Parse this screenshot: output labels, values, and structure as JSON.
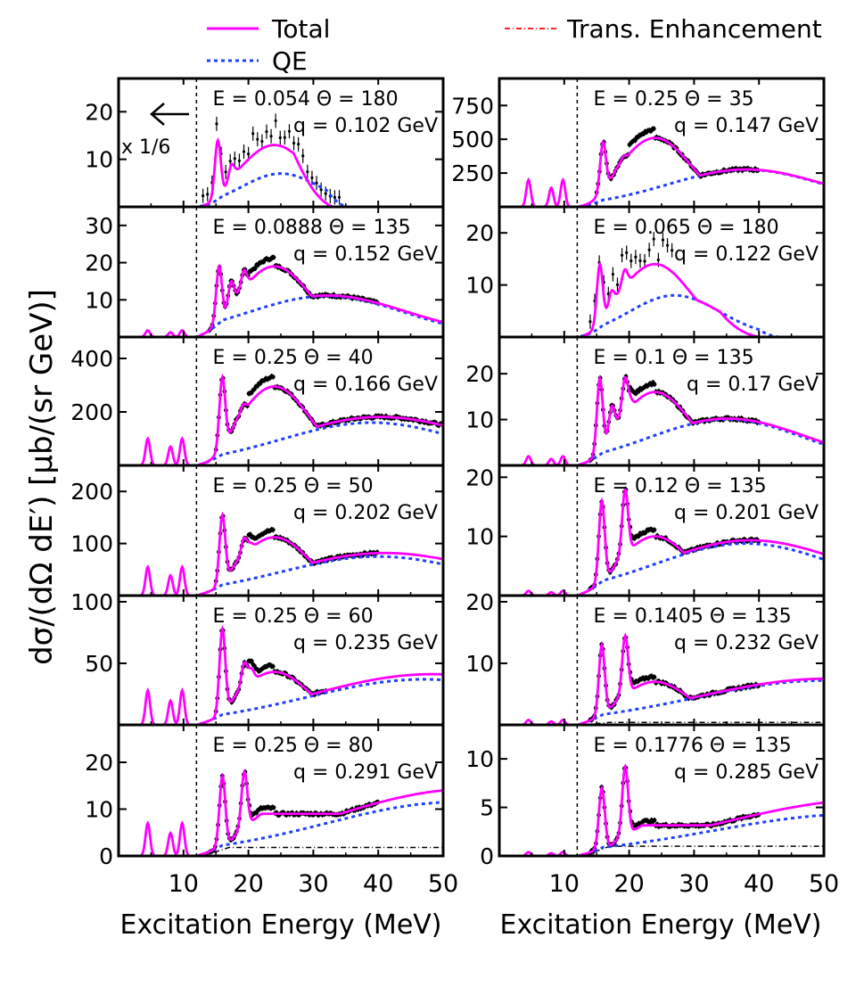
{
  "legend": {
    "total": "Total",
    "qe": "QE",
    "trans": "Trans. Enhancement"
  },
  "colors": {
    "total": "#ff00ff",
    "qe": "#1f3fff",
    "trans": "#ff2020",
    "data": "#000000"
  },
  "figure": {
    "ylabel": "dσ/(dΩ dE′) [μb/(sr GeV)]",
    "xlabel": "Excitation Energy (MeV)",
    "annotation_arrow": "x 1/6"
  },
  "chart_data": {
    "type": "line",
    "xlim": [
      0,
      50
    ],
    "x_ticks": [
      10,
      20,
      30,
      40,
      50
    ],
    "threshold_line_x": 12,
    "panels": [
      {
        "id": "L1",
        "col": 0,
        "row": 0,
        "label_E": "E = 0.054",
        "label_theta": "Θ = 180",
        "label_q": "q = 0.102 GeV",
        "ylim": [
          0,
          27
        ],
        "yticks": [
          10,
          20
        ],
        "peak": 13,
        "qe_peak": 7,
        "qe_center": 25,
        "qe_width": 6,
        "qe_end": 32,
        "curve_end": 33,
        "data_start": 13,
        "data_end": 34,
        "low_spikes": 0,
        "resonances": [
          [
            15.3,
            14
          ],
          [
            17.5,
            9
          ],
          [
            19.2,
            8
          ],
          [
            20.3,
            9
          ]
        ],
        "trans": 0
      },
      {
        "id": "L2",
        "col": 0,
        "row": 1,
        "label_E": "E = 0.0888",
        "label_theta": "Θ = 135",
        "label_q": "q = 0.152 GeV",
        "ylim": [
          0,
          35
        ],
        "yticks": [
          10,
          20,
          30
        ],
        "peak": 19,
        "qe_peak": 11,
        "qe_center": 32,
        "qe_width": 12,
        "tail": 4,
        "data_start": 14,
        "data_end": 40,
        "low_spikes": 1.8,
        "resonances": [
          [
            15.5,
            19
          ],
          [
            17.4,
            15
          ],
          [
            19.4,
            18
          ],
          [
            20.4,
            14
          ]
        ],
        "trans": 0
      },
      {
        "id": "L3",
        "col": 0,
        "row": 2,
        "label_E": "E = 0.25",
        "label_theta": "Θ = 40",
        "label_q": "q = 0.166 GeV",
        "ylim": [
          0,
          480
        ],
        "yticks": [
          200,
          400
        ],
        "peak": 295,
        "qe_peak": 160,
        "qe_center": 39,
        "qe_width": 14,
        "tail": 150,
        "data_start": 15,
        "data_end": 50,
        "low_spikes": 100,
        "resonances": [
          [
            16,
            330
          ],
          [
            19.4,
            230
          ],
          [
            20.6,
            200
          ]
        ],
        "trans": 0
      },
      {
        "id": "L4",
        "col": 0,
        "row": 3,
        "label_E": "E = 0.25",
        "label_theta": "Θ = 50",
        "label_q": "q = 0.202 GeV",
        "ylim": [
          0,
          250
        ],
        "yticks": [
          100,
          200
        ],
        "peak": 112,
        "qe_peak": 75,
        "qe_center": 40,
        "qe_width": 15,
        "tail": 70,
        "data_start": 15,
        "data_end": 40,
        "low_spikes": 55,
        "resonances": [
          [
            16,
            155
          ],
          [
            19.4,
            110
          ],
          [
            20.5,
            100
          ]
        ],
        "trans": 0
      },
      {
        "id": "L5",
        "col": 0,
        "row": 4,
        "label_E": "E = 0.25",
        "label_theta": "Θ = 60",
        "label_q": "q = 0.235 GeV",
        "ylim": [
          0,
          105
        ],
        "yticks": [
          50,
          100
        ],
        "peak": 43,
        "qe_peak": 37,
        "qe_center": 47,
        "qe_width": 18,
        "tail": 41,
        "data_start": 15,
        "data_end": 32,
        "low_spikes": 28,
        "resonances": [
          [
            16,
            78
          ],
          [
            19.4,
            50
          ],
          [
            20.5,
            45
          ]
        ],
        "trans": 0
      },
      {
        "id": "L6",
        "col": 0,
        "row": 5,
        "label_E": "E = 0.25",
        "label_theta": "Θ = 80",
        "label_q": "q = 0.291 GeV",
        "ylim": [
          0,
          28
        ],
        "yticks": [
          0,
          10,
          20
        ],
        "peak": 10,
        "qe_peak": 11.5,
        "qe_center": 52,
        "qe_width": 20,
        "tail": 14,
        "data_start": 14,
        "data_end": 40,
        "low_spikes": 7,
        "resonances": [
          [
            16,
            17
          ],
          [
            19.4,
            18
          ]
        ],
        "trans": 1.8,
        "rising": true
      },
      {
        "id": "R1",
        "col": 1,
        "row": 0,
        "label_E": "E = 0.25",
        "label_theta": "Θ = 35",
        "label_q": "q = 0.147 GeV",
        "ylim": [
          0,
          950
        ],
        "yticks": [
          250,
          500,
          750
        ],
        "peak": 510,
        "qe_peak": 275,
        "qe_center": 38,
        "qe_width": 12,
        "tail": 170,
        "data_start": 15,
        "data_end": 40,
        "low_spikes": 200,
        "resonances": [
          [
            16,
            480
          ],
          [
            19.4,
            380
          ],
          [
            20.6,
            330
          ]
        ],
        "trans": 0
      },
      {
        "id": "R2",
        "col": 1,
        "row": 1,
        "label_E": "E = 0.065",
        "label_theta": "Θ = 180",
        "label_q": "q = 0.122 GeV",
        "ylim": [
          0,
          25
        ],
        "yticks": [
          10,
          20
        ],
        "peak": 14,
        "qe_peak": 8,
        "qe_center": 27,
        "qe_width": 7,
        "qe_end": 40,
        "curve_end": 40,
        "data_start": 14,
        "data_end": 27,
        "low_spikes": 0,
        "resonances": [
          [
            15.5,
            14
          ],
          [
            17.4,
            9
          ],
          [
            19.4,
            13
          ],
          [
            20.4,
            10
          ]
        ],
        "trans": 0
      },
      {
        "id": "R3",
        "col": 1,
        "row": 2,
        "label_E": "E = 0.1",
        "label_theta": "Θ = 135",
        "label_q": "q = 0.17 GeV",
        "ylim": [
          0,
          28
        ],
        "yticks": [
          10,
          20
        ],
        "peak": 16,
        "qe_peak": 10,
        "qe_center": 35,
        "qe_width": 12,
        "tail": 5,
        "data_start": 14,
        "data_end": 40,
        "low_spikes": 2,
        "resonances": [
          [
            15.5,
            19
          ],
          [
            17.4,
            13
          ],
          [
            19.4,
            19
          ],
          [
            20.4,
            14
          ]
        ],
        "trans": 0
      },
      {
        "id": "R4",
        "col": 1,
        "row": 3,
        "label_E": "E = 0.12",
        "label_theta": "Θ = 135",
        "label_q": "q = 0.201 GeV",
        "ylim": [
          0,
          22
        ],
        "yticks": [
          10,
          20
        ],
        "peak": 10,
        "qe_peak": 8.8,
        "qe_center": 38,
        "qe_width": 14,
        "tail": 7,
        "data_start": 14,
        "data_end": 40,
        "low_spikes": 0.8,
        "resonances": [
          [
            15.8,
            16
          ],
          [
            19.4,
            18
          ]
        ],
        "trans": 0
      },
      {
        "id": "R5",
        "col": 1,
        "row": 4,
        "label_E": "E = 0.1405",
        "label_theta": "Θ = 135",
        "label_q": "q = 0.232 GeV",
        "ylim": [
          0,
          21
        ],
        "yticks": [
          10,
          20
        ],
        "peak": 7,
        "qe_peak": 7.2,
        "qe_center": 50,
        "qe_width": 20,
        "tail": 7.5,
        "data_start": 14,
        "data_end": 40,
        "low_spikes": 0.8,
        "resonances": [
          [
            15.8,
            13
          ],
          [
            19.4,
            14.5
          ]
        ],
        "trans": 0.4
      },
      {
        "id": "R6",
        "col": 1,
        "row": 5,
        "label_E": "E = 0.1776",
        "label_theta": "Θ = 135",
        "label_q": "q = 0.285 GeV",
        "ylim": [
          0,
          13.5
        ],
        "yticks": [
          0,
          5,
          10
        ],
        "peak": 3.5,
        "qe_peak": 4.3,
        "qe_center": 55,
        "qe_width": 22,
        "tail": 5.5,
        "data_start": 14,
        "data_end": 40,
        "low_spikes": 0.4,
        "resonances": [
          [
            15.8,
            7
          ],
          [
            19.4,
            9.2
          ]
        ],
        "trans": 1.0,
        "rising": true
      }
    ]
  }
}
